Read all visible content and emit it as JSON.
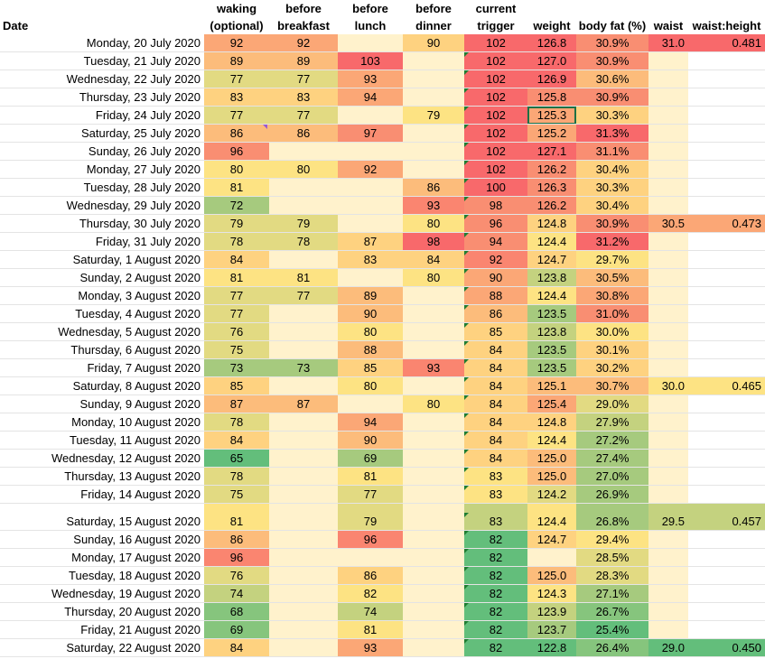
{
  "headers": {
    "date": "Date",
    "waking": [
      "waking",
      "(optional)"
    ],
    "before_breakfast": [
      "before",
      "breakfast"
    ],
    "before_lunch": [
      "before",
      "lunch"
    ],
    "before_dinner": [
      "before",
      "dinner"
    ],
    "current_trigger": [
      "current",
      "trigger"
    ],
    "weight": "weight",
    "body_fat": "body fat (%)",
    "waist": "waist",
    "waist_height": "waist:height"
  },
  "colors": {
    "g1": "#63be7b",
    "g2": "#86c57d",
    "g3": "#a6ca7e",
    "g4": "#c4d27f",
    "y1": "#e2da82",
    "y2": "#fde383",
    "o1": "#fed280",
    "o2": "#fcbc7b",
    "o3": "#fba776",
    "r1": "#f98e72",
    "r2": "#f8696b",
    "r3": "#fa8570",
    "cream": "#fff2cc",
    "ymid": "#f2dd83"
  },
  "rows": [
    {
      "date": "Monday, 20 July 2020",
      "waking": [
        "92",
        "o3"
      ],
      "bb": [
        "92",
        "o3"
      ],
      "bl": [
        "",
        "cream"
      ],
      "bd": [
        "90",
        "o1"
      ],
      "trg": [
        "102",
        "r2",
        false
      ],
      "wt": [
        "126.8",
        "r2"
      ],
      "bf": [
        "30.9%",
        "r1"
      ],
      "wa": [
        "31.0",
        "r2"
      ],
      "wh": [
        "0.481",
        "r2"
      ]
    },
    {
      "date": "Tuesday, 21 July 2020",
      "waking": [
        "89",
        "o2"
      ],
      "bb": [
        "89",
        "o2"
      ],
      "bl": [
        "103",
        "r2"
      ],
      "bd": [
        "",
        "cream"
      ],
      "trg": [
        "102",
        "r2",
        true
      ],
      "wt": [
        "127.0",
        "r2"
      ],
      "bf": [
        "30.9%",
        "r1"
      ],
      "wa": [
        "",
        "cream"
      ],
      "wh": [
        "",
        ""
      ]
    },
    {
      "date": "Wednesday, 22 July 2020",
      "waking": [
        "77",
        "y1"
      ],
      "bb": [
        "77",
        "y1"
      ],
      "bl": [
        "93",
        "o3"
      ],
      "bd": [
        "",
        "cream"
      ],
      "trg": [
        "102",
        "r2",
        true
      ],
      "wt": [
        "126.9",
        "r2"
      ],
      "bf": [
        "30.6%",
        "o2"
      ],
      "wa": [
        "",
        "cream"
      ],
      "wh": [
        "",
        ""
      ]
    },
    {
      "date": "Thursday, 23 July 2020",
      "waking": [
        "83",
        "o1"
      ],
      "bb": [
        "83",
        "o1"
      ],
      "bl": [
        "94",
        "o3"
      ],
      "bd": [
        "",
        "cream"
      ],
      "trg": [
        "102",
        "r2",
        true
      ],
      "wt": [
        "125.8",
        "r1"
      ],
      "bf": [
        "30.9%",
        "r1"
      ],
      "wa": [
        "",
        "cream"
      ],
      "wh": [
        "",
        ""
      ]
    },
    {
      "date": "Friday, 24 July 2020",
      "waking": [
        "77",
        "y1"
      ],
      "bb": [
        "77",
        "y1"
      ],
      "bl": [
        "",
        "cream"
      ],
      "bd": [
        "79",
        "y2"
      ],
      "trg": [
        "102",
        "r2",
        true
      ],
      "wt": [
        "125.3",
        "o3",
        "sel"
      ],
      "bf": [
        "30.3%",
        "o1"
      ],
      "wa": [
        "",
        "cream"
      ],
      "wh": [
        "",
        ""
      ]
    },
    {
      "date": "Saturday, 25 July 2020",
      "waking": [
        "86",
        "o2",
        "pur"
      ],
      "bb": [
        "86",
        "o2"
      ],
      "bl": [
        "97",
        "r1"
      ],
      "bd": [
        "",
        "cream"
      ],
      "trg": [
        "102",
        "r2",
        true
      ],
      "wt": [
        "125.2",
        "o3"
      ],
      "bf": [
        "31.3%",
        "r2"
      ],
      "wa": [
        "",
        "cream"
      ],
      "wh": [
        "",
        ""
      ]
    },
    {
      "date": "Sunday, 26 July 2020",
      "waking": [
        "96",
        "r1"
      ],
      "bb": [
        "",
        "cream"
      ],
      "bl": [
        "",
        "cream"
      ],
      "bd": [
        "",
        "cream"
      ],
      "trg": [
        "102",
        "r2",
        true
      ],
      "wt": [
        "127.1",
        "r2"
      ],
      "bf": [
        "31.1%",
        "r1"
      ],
      "wa": [
        "",
        "cream"
      ],
      "wh": [
        "",
        ""
      ]
    },
    {
      "date": "Monday, 27 July 2020",
      "waking": [
        "80",
        "y2"
      ],
      "bb": [
        "80",
        "y2"
      ],
      "bl": [
        "92",
        "o3"
      ],
      "bd": [
        "",
        "cream"
      ],
      "trg": [
        "102",
        "r2",
        true
      ],
      "wt": [
        "126.2",
        "r1"
      ],
      "bf": [
        "30.4%",
        "o1"
      ],
      "wa": [
        "",
        "cream"
      ],
      "wh": [
        "",
        ""
      ]
    },
    {
      "date": "Tuesday, 28 July 2020",
      "waking": [
        "81",
        "y2"
      ],
      "bb": [
        "",
        "cream"
      ],
      "bl": [
        "",
        "cream"
      ],
      "bd": [
        "86",
        "o2"
      ],
      "trg": [
        "100",
        "r2",
        true
      ],
      "wt": [
        "126.3",
        "r1"
      ],
      "bf": [
        "30.3%",
        "o1"
      ],
      "wa": [
        "",
        "cream"
      ],
      "wh": [
        "",
        ""
      ]
    },
    {
      "date": "Wednesday, 29 July 2020",
      "waking": [
        "72",
        "g3"
      ],
      "bb": [
        "",
        "cream"
      ],
      "bl": [
        "",
        "cream"
      ],
      "bd": [
        "93",
        "r3"
      ],
      "trg": [
        "98",
        "r1",
        true
      ],
      "wt": [
        "126.2",
        "r1"
      ],
      "bf": [
        "30.4%",
        "o1"
      ],
      "wa": [
        "",
        "cream"
      ],
      "wh": [
        "",
        ""
      ]
    },
    {
      "date": "Thursday, 30 July 2020",
      "waking": [
        "79",
        "y1"
      ],
      "bb": [
        "79",
        "y1"
      ],
      "bl": [
        "",
        "cream"
      ],
      "bd": [
        "80",
        "y2"
      ],
      "trg": [
        "96",
        "r1",
        true
      ],
      "wt": [
        "124.8",
        "o1"
      ],
      "bf": [
        "30.9%",
        "r1"
      ],
      "wa": [
        "30.5",
        "o3"
      ],
      "wh": [
        "0.473",
        "o3"
      ]
    },
    {
      "date": "Friday, 31 July 2020",
      "waking": [
        "78",
        "y1"
      ],
      "bb": [
        "78",
        "y1"
      ],
      "bl": [
        "87",
        "o1"
      ],
      "bd": [
        "98",
        "r2"
      ],
      "trg": [
        "94",
        "r1",
        true
      ],
      "wt": [
        "124.4",
        "y2"
      ],
      "bf": [
        "31.2%",
        "r2"
      ],
      "wa": [
        "",
        "cream"
      ],
      "wh": [
        "",
        ""
      ]
    },
    {
      "date": "Saturday, 1 August 2020",
      "waking": [
        "84",
        "o1"
      ],
      "bb": [
        "",
        "cream"
      ],
      "bl": [
        "83",
        "o1"
      ],
      "bd": [
        "84",
        "o1"
      ],
      "trg": [
        "92",
        "r3",
        true
      ],
      "wt": [
        "124.7",
        "o1"
      ],
      "bf": [
        "29.7%",
        "y2"
      ],
      "wa": [
        "",
        "cream"
      ],
      "wh": [
        "",
        ""
      ]
    },
    {
      "date": "Sunday, 2 August 2020",
      "waking": [
        "81",
        "y2"
      ],
      "bb": [
        "81",
        "y2"
      ],
      "bl": [
        "",
        "cream"
      ],
      "bd": [
        "80",
        "y2"
      ],
      "trg": [
        "90",
        "o3",
        true
      ],
      "wt": [
        "123.8",
        "g4"
      ],
      "bf": [
        "30.5%",
        "o2"
      ],
      "wa": [
        "",
        "cream"
      ],
      "wh": [
        "",
        ""
      ]
    },
    {
      "date": "Monday, 3 August 2020",
      "waking": [
        "77",
        "y1"
      ],
      "bb": [
        "77",
        "y1"
      ],
      "bl": [
        "89",
        "o2"
      ],
      "bd": [
        "",
        "cream"
      ],
      "trg": [
        "88",
        "o3",
        true
      ],
      "wt": [
        "124.4",
        "y2"
      ],
      "bf": [
        "30.8%",
        "o3"
      ],
      "wa": [
        "",
        "cream"
      ],
      "wh": [
        "",
        ""
      ]
    },
    {
      "date": "Tuesday, 4 August 2020",
      "waking": [
        "77",
        "y1"
      ],
      "bb": [
        "",
        "cream"
      ],
      "bl": [
        "90",
        "o2"
      ],
      "bd": [
        "",
        "cream"
      ],
      "trg": [
        "86",
        "o2",
        true
      ],
      "wt": [
        "123.5",
        "g3"
      ],
      "bf": [
        "31.0%",
        "r1"
      ],
      "wa": [
        "",
        "cream"
      ],
      "wh": [
        "",
        ""
      ]
    },
    {
      "date": "Wednesday, 5 August 2020",
      "waking": [
        "76",
        "y1"
      ],
      "bb": [
        "",
        "cream"
      ],
      "bl": [
        "80",
        "y2"
      ],
      "bd": [
        "",
        "cream"
      ],
      "trg": [
        "85",
        "o1",
        true
      ],
      "wt": [
        "123.8",
        "g4"
      ],
      "bf": [
        "30.0%",
        "y2"
      ],
      "wa": [
        "",
        "cream"
      ],
      "wh": [
        "",
        ""
      ]
    },
    {
      "date": "Thursday, 6 August 2020",
      "waking": [
        "75",
        "y1"
      ],
      "bb": [
        "",
        "cream"
      ],
      "bl": [
        "88",
        "o2"
      ],
      "bd": [
        "",
        "cream"
      ],
      "trg": [
        "84",
        "o1",
        true
      ],
      "wt": [
        "123.5",
        "g3"
      ],
      "bf": [
        "30.1%",
        "o1"
      ],
      "wa": [
        "",
        "cream"
      ],
      "wh": [
        "",
        ""
      ]
    },
    {
      "date": "Friday, 7 August 2020",
      "waking": [
        "73",
        "g3"
      ],
      "bb": [
        "73",
        "g3"
      ],
      "bl": [
        "85",
        "o1"
      ],
      "bd": [
        "93",
        "r3"
      ],
      "trg": [
        "84",
        "o1",
        true
      ],
      "wt": [
        "123.5",
        "g3"
      ],
      "bf": [
        "30.2%",
        "o1"
      ],
      "wa": [
        "",
        "cream"
      ],
      "wh": [
        "",
        ""
      ]
    },
    {
      "date": "Saturday, 8 August 2020",
      "waking": [
        "85",
        "o1"
      ],
      "bb": [
        "",
        "cream"
      ],
      "bl": [
        "80",
        "y2"
      ],
      "bd": [
        "",
        "cream"
      ],
      "trg": [
        "84",
        "o1",
        true
      ],
      "wt": [
        "125.1",
        "o2"
      ],
      "bf": [
        "30.7%",
        "o2"
      ],
      "wa": [
        "30.0",
        "y2"
      ],
      "wh": [
        "0.465",
        "y2"
      ]
    },
    {
      "date": "Sunday, 9 August 2020",
      "waking": [
        "87",
        "o2"
      ],
      "bb": [
        "87",
        "o2"
      ],
      "bl": [
        "",
        "cream"
      ],
      "bd": [
        "80",
        "y2"
      ],
      "trg": [
        "84",
        "o1",
        true
      ],
      "wt": [
        "125.4",
        "o3"
      ],
      "bf": [
        "29.0%",
        "y1"
      ],
      "wa": [
        "",
        "cream"
      ],
      "wh": [
        "",
        ""
      ]
    },
    {
      "date": "Monday, 10 August 2020",
      "waking": [
        "78",
        "y1"
      ],
      "bb": [
        "",
        "cream"
      ],
      "bl": [
        "94",
        "o3"
      ],
      "bd": [
        "",
        "cream"
      ],
      "trg": [
        "84",
        "o1",
        true
      ],
      "wt": [
        "124.8",
        "o1"
      ],
      "bf": [
        "27.9%",
        "g4"
      ],
      "wa": [
        "",
        "cream"
      ],
      "wh": [
        "",
        ""
      ]
    },
    {
      "date": "Tuesday, 11 August 2020",
      "waking": [
        "84",
        "o1"
      ],
      "bb": [
        "",
        "cream"
      ],
      "bl": [
        "90",
        "o2"
      ],
      "bd": [
        "",
        "cream"
      ],
      "trg": [
        "84",
        "o1",
        true
      ],
      "wt": [
        "124.4",
        "y2"
      ],
      "bf": [
        "27.2%",
        "g3"
      ],
      "wa": [
        "",
        "cream"
      ],
      "wh": [
        "",
        ""
      ]
    },
    {
      "date": "Wednesday, 12 August 2020",
      "waking": [
        "65",
        "g1"
      ],
      "bb": [
        "",
        "cream"
      ],
      "bl": [
        "69",
        "g3"
      ],
      "bd": [
        "",
        "cream"
      ],
      "trg": [
        "84",
        "o1",
        true
      ],
      "wt": [
        "125.0",
        "o2"
      ],
      "bf": [
        "27.4%",
        "g3"
      ],
      "wa": [
        "",
        "cream"
      ],
      "wh": [
        "",
        ""
      ]
    },
    {
      "date": "Thursday, 13 August 2020",
      "waking": [
        "78",
        "y1"
      ],
      "bb": [
        "",
        "cream"
      ],
      "bl": [
        "81",
        "y2"
      ],
      "bd": [
        "",
        "cream"
      ],
      "trg": [
        "83",
        "y2",
        true
      ],
      "wt": [
        "125.0",
        "o2"
      ],
      "bf": [
        "27.0%",
        "g3"
      ],
      "wa": [
        "",
        "cream"
      ],
      "wh": [
        "",
        ""
      ]
    },
    {
      "date": "Friday, 14 August 2020",
      "waking": [
        "75",
        "y1"
      ],
      "bb": [
        "",
        "cream"
      ],
      "bl": [
        "77",
        "y1"
      ],
      "bd": [
        "",
        "cream"
      ],
      "trg": [
        "83",
        "y2",
        true
      ],
      "wt": [
        "124.2",
        "y1"
      ],
      "bf": [
        "26.9%",
        "g3"
      ],
      "wa": [
        "",
        "cream"
      ],
      "wh": [
        "",
        ""
      ]
    },
    {
      "date": "Saturday, 15 August 2020",
      "tall": true,
      "waking": [
        "81",
        "y2"
      ],
      "bb": [
        "",
        "cream"
      ],
      "bl": [
        "79",
        "y1"
      ],
      "bd": [
        "",
        "cream"
      ],
      "trg": [
        "83",
        "g4",
        true
      ],
      "wt": [
        "124.4",
        "y2"
      ],
      "bf": [
        "26.8%",
        "g3"
      ],
      "wa": [
        "29.5",
        "g4"
      ],
      "wh": [
        "0.457",
        "g4"
      ]
    },
    {
      "date": "Sunday, 16 August 2020",
      "waking": [
        "86",
        "o2"
      ],
      "bb": [
        "",
        "cream"
      ],
      "bl": [
        "96",
        "r3"
      ],
      "bd": [
        "",
        "cream"
      ],
      "trg": [
        "82",
        "g1",
        true
      ],
      "wt": [
        "124.7",
        "o1"
      ],
      "bf": [
        "29.4%",
        "y2"
      ],
      "wa": [
        "",
        "cream"
      ],
      "wh": [
        "",
        ""
      ]
    },
    {
      "date": "Monday, 17 August 2020",
      "waking": [
        "96",
        "r3"
      ],
      "bb": [
        "",
        "cream"
      ],
      "bl": [
        "",
        "cream"
      ],
      "bd": [
        "",
        "cream"
      ],
      "trg": [
        "82",
        "g1",
        true
      ],
      "wt": [
        "",
        "cream"
      ],
      "bf": [
        "28.5%",
        "y1"
      ],
      "wa": [
        "",
        "cream"
      ],
      "wh": [
        "",
        ""
      ]
    },
    {
      "date": "Tuesday, 18 August 2020",
      "waking": [
        "76",
        "y1"
      ],
      "bb": [
        "",
        "cream"
      ],
      "bl": [
        "86",
        "o1"
      ],
      "bd": [
        "",
        "cream"
      ],
      "trg": [
        "82",
        "g1",
        true
      ],
      "wt": [
        "125.0",
        "o2"
      ],
      "bf": [
        "28.3%",
        "y1"
      ],
      "wa": [
        "",
        "cream"
      ],
      "wh": [
        "",
        ""
      ]
    },
    {
      "date": "Wednesday, 19 August 2020",
      "waking": [
        "74",
        "g4"
      ],
      "bb": [
        "",
        "cream"
      ],
      "bl": [
        "82",
        "y2"
      ],
      "bd": [
        "",
        "cream"
      ],
      "trg": [
        "82",
        "g1",
        true
      ],
      "wt": [
        "124.3",
        "y2"
      ],
      "bf": [
        "27.1%",
        "g3"
      ],
      "wa": [
        "",
        "cream"
      ],
      "wh": [
        "",
        ""
      ]
    },
    {
      "date": "Thursday, 20 August 2020",
      "waking": [
        "68",
        "g2"
      ],
      "bb": [
        "",
        "cream"
      ],
      "bl": [
        "74",
        "g4"
      ],
      "bd": [
        "",
        "cream"
      ],
      "trg": [
        "82",
        "g1",
        true
      ],
      "wt": [
        "123.9",
        "g4"
      ],
      "bf": [
        "26.7%",
        "g2"
      ],
      "wa": [
        "",
        "cream"
      ],
      "wh": [
        "",
        ""
      ]
    },
    {
      "date": "Friday, 21 August 2020",
      "waking": [
        "69",
        "g2"
      ],
      "bb": [
        "",
        "cream"
      ],
      "bl": [
        "81",
        "y2"
      ],
      "bd": [
        "",
        "cream"
      ],
      "trg": [
        "82",
        "g1",
        true
      ],
      "wt": [
        "123.7",
        "g3"
      ],
      "bf": [
        "25.4%",
        "g1"
      ],
      "wa": [
        "",
        "cream"
      ],
      "wh": [
        "",
        ""
      ]
    },
    {
      "date": "Saturday, 22 August 2020",
      "waking": [
        "84",
        "o1"
      ],
      "bb": [
        "",
        "cream"
      ],
      "bl": [
        "93",
        "o3"
      ],
      "bd": [
        "",
        "cream"
      ],
      "trg": [
        "82",
        "g1",
        true
      ],
      "wt": [
        "122.8",
        "g1"
      ],
      "bf": [
        "26.4%",
        "g2"
      ],
      "wa": [
        "29.0",
        "g1"
      ],
      "wh": [
        "0.450",
        "g1"
      ]
    }
  ]
}
